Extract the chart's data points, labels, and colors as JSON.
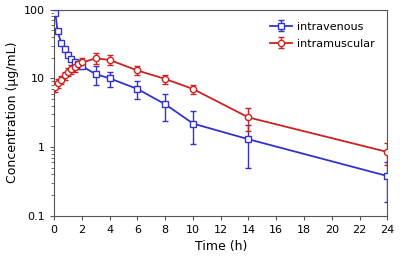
{
  "iv_time": [
    0.083,
    0.25,
    0.5,
    0.75,
    1.0,
    1.25,
    1.5,
    1.75,
    2.0,
    3.0,
    4.0,
    6.0,
    8.0,
    10.0,
    14.0,
    24.0
  ],
  "iv_conc": [
    90.0,
    48.0,
    33.0,
    27.0,
    22.0,
    19.0,
    17.0,
    16.0,
    15.0,
    11.5,
    10.0,
    7.0,
    4.2,
    2.2,
    1.3,
    0.38
  ],
  "iv_err_lo": [
    0.0,
    0.0,
    0.0,
    0.0,
    0.0,
    0.0,
    0.0,
    0.0,
    0.0,
    3.5,
    2.5,
    2.0,
    1.8,
    1.1,
    0.8,
    0.22
  ],
  "iv_err_hi": [
    0.0,
    0.0,
    0.0,
    0.0,
    0.0,
    0.0,
    0.0,
    0.0,
    0.0,
    3.5,
    2.5,
    2.0,
    1.8,
    1.1,
    0.8,
    0.22
  ],
  "im_time": [
    0.083,
    0.25,
    0.5,
    0.75,
    1.0,
    1.25,
    1.5,
    1.75,
    2.0,
    3.0,
    4.0,
    6.0,
    8.0,
    10.0,
    14.0,
    24.0
  ],
  "im_conc": [
    7.5,
    8.5,
    9.5,
    11.0,
    12.5,
    13.5,
    14.5,
    16.0,
    17.0,
    19.5,
    18.5,
    13.0,
    9.8,
    7.0,
    2.7,
    0.85
  ],
  "im_err_lo": [
    1.2,
    1.2,
    1.2,
    1.5,
    1.8,
    2.0,
    2.2,
    2.5,
    2.8,
    3.5,
    3.0,
    2.0,
    1.5,
    1.0,
    1.0,
    0.3
  ],
  "im_err_hi": [
    1.2,
    1.2,
    1.2,
    1.5,
    1.8,
    2.0,
    2.2,
    2.5,
    2.8,
    3.5,
    3.0,
    2.0,
    1.5,
    1.0,
    1.0,
    0.3
  ],
  "iv_color": "#3333cc",
  "im_color": "#cc2222",
  "xlabel": "Time (h)",
  "ylabel": "Concentration (μg/mL)",
  "ylim_lo": 0.1,
  "ylim_hi": 100,
  "xlim_lo": 0,
  "xlim_hi": 24,
  "xticks": [
    0,
    2,
    4,
    6,
    8,
    10,
    12,
    14,
    16,
    18,
    20,
    22,
    24
  ],
  "yticks": [
    0.1,
    1,
    10,
    100
  ],
  "ytick_labels": [
    "0.1",
    "1",
    "10",
    "100"
  ],
  "legend_iv": "intravenous",
  "legend_im": "intramuscular",
  "background_color": "#ffffff",
  "markersize": 4.5,
  "linewidth": 1.3,
  "elinewidth": 1.0,
  "capsize": 2.5,
  "xlabel_fontsize": 9,
  "ylabel_fontsize": 9,
  "tick_labelsize": 8,
  "legend_fontsize": 8
}
